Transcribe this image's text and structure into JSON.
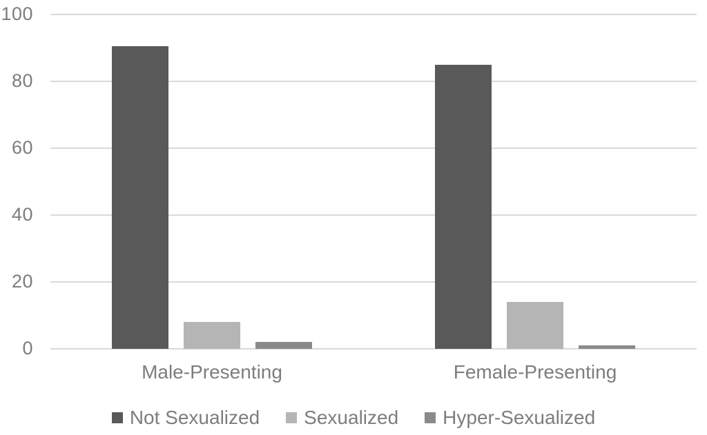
{
  "chart_data": {
    "type": "bar",
    "title": "",
    "xlabel": "",
    "ylabel": "",
    "categories": [
      "Male-Presenting",
      "Female-Presenting"
    ],
    "series": [
      {
        "name": "Not Sexualized",
        "color": "#595959",
        "values": [
          90.5,
          85
        ]
      },
      {
        "name": "Sexualized",
        "color": "#b5b5b5",
        "values": [
          8,
          14
        ]
      },
      {
        "name": "Hyper-Sexualized",
        "color": "#8a8a8a",
        "values": [
          2,
          1
        ]
      }
    ],
    "ylim": [
      0,
      100
    ],
    "yticks": [
      0,
      20,
      40,
      60,
      80,
      100
    ],
    "grid": true,
    "legend_position": "bottom"
  },
  "colors": {
    "background": "#ffffff",
    "gridline": "#d9d9d9",
    "axis_text": "#7d7d7d"
  }
}
